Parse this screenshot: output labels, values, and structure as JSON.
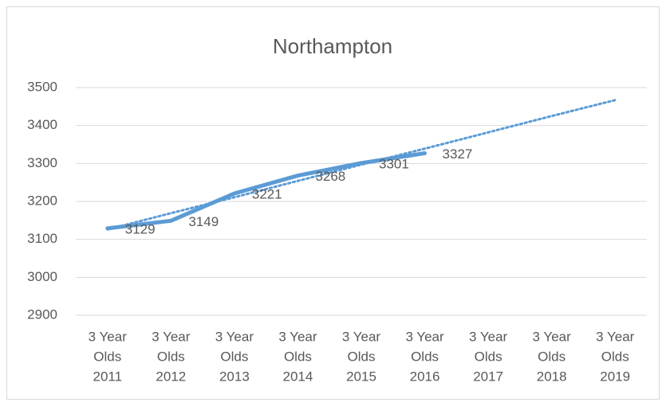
{
  "chart_data": {
    "type": "line",
    "title": "Northampton",
    "categories": [
      [
        "3 Year",
        "Olds",
        "2011"
      ],
      [
        "3 Year",
        "Olds",
        "2012"
      ],
      [
        "3 Year",
        "Olds",
        "2013"
      ],
      [
        "3 Year",
        "Olds",
        "2014"
      ],
      [
        "3 Year",
        "Olds",
        "2015"
      ],
      [
        "3 Year",
        "Olds",
        "2016"
      ],
      [
        "3 Year",
        "Olds",
        "2017"
      ],
      [
        "3 Year",
        "Olds",
        "2018"
      ],
      [
        "3 Year",
        "Olds",
        "2019"
      ]
    ],
    "series": [
      {
        "color": "#5b9bd5",
        "values": [
          3129,
          3149,
          3221,
          3268,
          3301,
          3327,
          null,
          null,
          null
        ]
      }
    ],
    "trendline": {
      "color": "#5b9bd5",
      "values": [
        3126,
        3169,
        3211,
        3254,
        3297,
        3339,
        3382,
        3425,
        3467
      ]
    },
    "ylim": [
      2900,
      3500
    ],
    "yticks": [
      2900,
      3000,
      3100,
      3200,
      3300,
      3400,
      3500
    ],
    "grid": true,
    "data_labels": true
  }
}
